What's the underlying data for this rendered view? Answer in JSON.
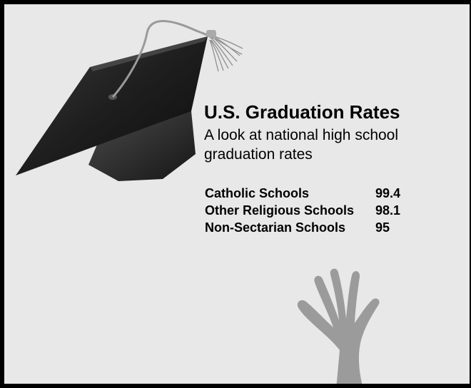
{
  "title": "U.S. Graduation Rates",
  "subtitle": "A look at national high school graduation rates",
  "rates": [
    {
      "label": "Catholic Schools",
      "value": "99.4"
    },
    {
      "label": "Other Religious Schools",
      "value": "98.1"
    },
    {
      "label": "Non-Sectarian Schools",
      "value": "95"
    }
  ],
  "illustrations": {
    "cap": "graduation-cap-icon",
    "hand": "raised-hand-icon"
  }
}
